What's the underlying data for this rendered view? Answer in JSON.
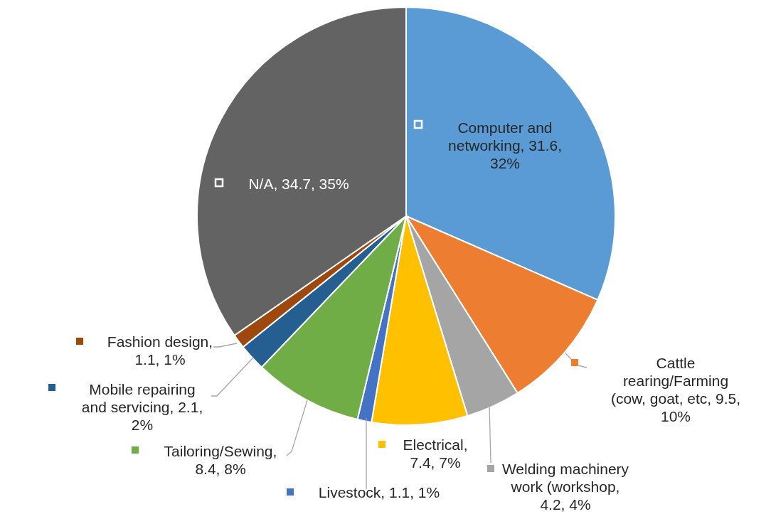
{
  "chart_data": {
    "type": "pie",
    "values": [
      31.6,
      9.5,
      4.2,
      7.4,
      1.1,
      8.4,
      2.1,
      1.1,
      34.7
    ],
    "colors": [
      "#5b9bd5",
      "#ed7d31",
      "#a5a5a5",
      "#ffc000",
      "#4472c4",
      "#70ad47",
      "#255e91",
      "#9e480e",
      "#636363"
    ],
    "value_labels": [
      "Computer and networking, 31.6, 32%",
      "Cattle rearing/Farming (cow, goat, etc, 9.5, 10%",
      "Welding machinery work (workshop, 4.2, 4%",
      "Electrical, 7.4, 7%",
      "Livestock, 1.1, 1%",
      "Tailoring/Sewing, 8.4, 8%",
      "Mobile repairing and servicing, 2.1, 2%",
      "Fashion design, 1.1, 1%",
      "N/A, 34.7, 35%"
    ],
    "legend": false
  }
}
